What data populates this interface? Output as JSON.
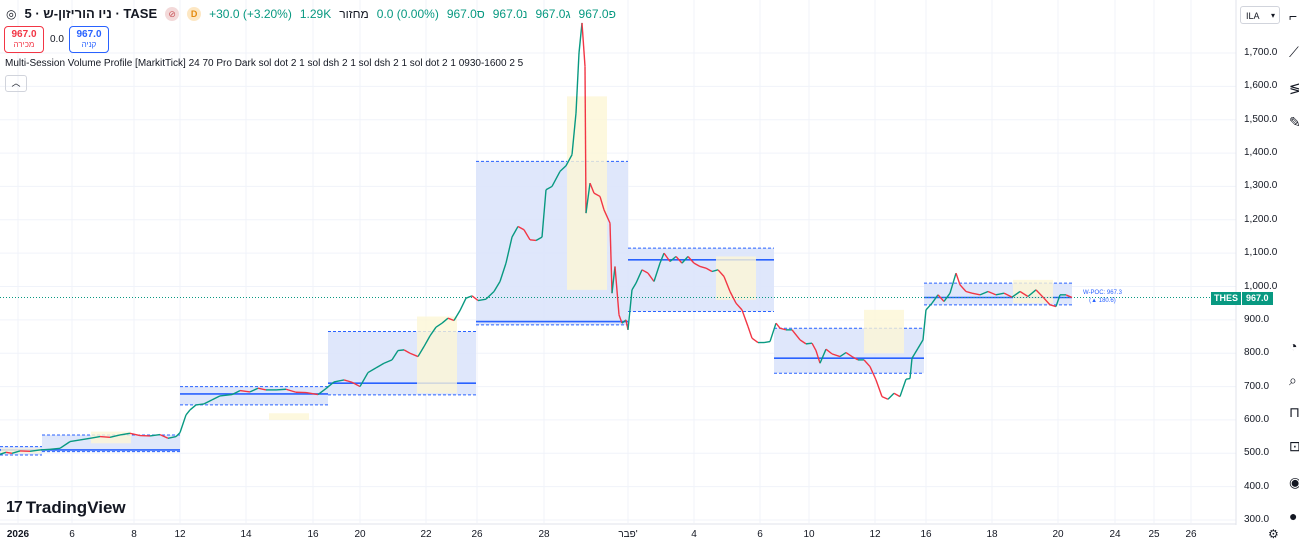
{
  "header": {
    "symbol_title": "ניו הוריזון-ש · 5 · TASE",
    "open": "פ967.0",
    "high": "ג967.0",
    "low": "נ967.0",
    "close": "ס967.0",
    "change": "0.0 (0.00%)",
    "volume_label": "מחזור",
    "volume": "1.29K",
    "day_change": "+30.0 (+3.20%)",
    "badge_d": "D"
  },
  "trade": {
    "sell_value": "967.0",
    "sell_label": "מכירה",
    "spread": "0.0",
    "buy_value": "967.0",
    "buy_label": "קניה"
  },
  "indicator": {
    "label": "Multi-Session Volume Profile [MarkitTick] 24 70 Pro Dark sol dot 2 1 sol dsh 2 1 sol dsh 2 1 sol dot 2 1 0930-1600 2 5"
  },
  "currency": "ILA",
  "logo": "TradingView",
  "last_price": {
    "symbol": "THES",
    "value": "967.0"
  },
  "wpoc": {
    "label": "W-POC: 967.3",
    "delta": "(▲ 180.6)"
  },
  "colors": {
    "up": "#089981",
    "down": "#f23645",
    "accent": "#2962ff",
    "profile_fill": "#dbe4fb",
    "value_area": "#fdf6d6"
  },
  "chart_data": {
    "type": "candlestick-line",
    "title": "ניו הוריזון-ש · 5 · TASE",
    "xlabel": "",
    "ylabel": "",
    "ylim": [
      280,
      1840
    ],
    "y_ticks": [
      "1,700.0",
      "1,600.0",
      "1,500.0",
      "1,400.0",
      "1,300.0",
      "1,200.0",
      "1,100.0",
      "1,000.0",
      "900.0",
      "800.0",
      "700.0",
      "600.0",
      "500.0",
      "400.0",
      "300.0"
    ],
    "x_ticks": [
      "2026",
      "6",
      "8",
      "12",
      "14",
      "16",
      "20",
      "22",
      "26",
      "28",
      "פבר'",
      "4",
      "6",
      "10",
      "12",
      "16",
      "18",
      "20",
      "24",
      "25",
      "26"
    ],
    "price_path": [
      [
        0,
        497
      ],
      [
        6,
        503
      ],
      [
        12,
        500
      ],
      [
        20,
        507
      ],
      [
        30,
        506
      ],
      [
        40,
        510
      ],
      [
        50,
        512
      ],
      [
        60,
        515
      ],
      [
        70,
        535
      ],
      [
        80,
        540
      ],
      [
        90,
        545
      ],
      [
        100,
        550
      ],
      [
        110,
        548
      ],
      [
        120,
        555
      ],
      [
        130,
        560
      ],
      [
        140,
        553
      ],
      [
        150,
        552
      ],
      [
        160,
        556
      ],
      [
        168,
        545
      ],
      [
        176,
        550
      ],
      [
        180,
        562
      ],
      [
        186,
        615
      ],
      [
        190,
        630
      ],
      [
        196,
        645
      ],
      [
        204,
        648
      ],
      [
        212,
        660
      ],
      [
        220,
        672
      ],
      [
        232,
        676
      ],
      [
        240,
        688
      ],
      [
        250,
        684
      ],
      [
        258,
        695
      ],
      [
        266,
        690
      ],
      [
        276,
        690
      ],
      [
        286,
        692
      ],
      [
        296,
        683
      ],
      [
        306,
        682
      ],
      [
        318,
        676
      ],
      [
        326,
        694
      ],
      [
        334,
        714
      ],
      [
        344,
        720
      ],
      [
        352,
        713
      ],
      [
        360,
        700
      ],
      [
        368,
        742
      ],
      [
        376,
        756
      ],
      [
        384,
        770
      ],
      [
        392,
        780
      ],
      [
        398,
        808
      ],
      [
        404,
        810
      ],
      [
        410,
        800
      ],
      [
        418,
        790
      ],
      [
        424,
        820
      ],
      [
        430,
        852
      ],
      [
        436,
        878
      ],
      [
        442,
        890
      ],
      [
        448,
        905
      ],
      [
        454,
        898
      ],
      [
        460,
        928
      ],
      [
        466,
        965
      ],
      [
        472,
        972
      ],
      [
        478,
        958
      ],
      [
        486,
        962
      ],
      [
        494,
        985
      ],
      [
        500,
        1015
      ],
      [
        506,
        1070
      ],
      [
        512,
        1148
      ],
      [
        518,
        1180
      ],
      [
        524,
        1170
      ],
      [
        530,
        1140
      ],
      [
        536,
        1138
      ],
      [
        542,
        1148
      ],
      [
        546,
        1290
      ],
      [
        552,
        1300
      ],
      [
        560,
        1345
      ],
      [
        566,
        1362
      ],
      [
        572,
        1395
      ],
      [
        576,
        1520
      ],
      [
        579,
        1700
      ],
      [
        582,
        1790
      ],
      [
        585,
        1660
      ],
      [
        586,
        1220
      ],
      [
        590,
        1310
      ],
      [
        594,
        1280
      ],
      [
        600,
        1270
      ],
      [
        604,
        1230
      ],
      [
        610,
        1190
      ],
      [
        612,
        980
      ],
      [
        615,
        1060
      ],
      [
        619,
        915
      ],
      [
        622,
        890
      ],
      [
        626,
        900
      ],
      [
        628,
        870
      ],
      [
        632,
        990
      ],
      [
        636,
        1010
      ],
      [
        642,
        1050
      ],
      [
        648,
        1040
      ],
      [
        654,
        1015
      ],
      [
        660,
        1070
      ],
      [
        664,
        1100
      ],
      [
        670,
        1075
      ],
      [
        676,
        1090
      ],
      [
        682,
        1070
      ],
      [
        688,
        1090
      ],
      [
        694,
        1070
      ],
      [
        700,
        1060
      ],
      [
        706,
        1055
      ],
      [
        712,
        1045
      ],
      [
        718,
        1050
      ],
      [
        724,
        1030
      ],
      [
        730,
        985
      ],
      [
        736,
        950
      ],
      [
        742,
        930
      ],
      [
        748,
        880
      ],
      [
        752,
        845
      ],
      [
        758,
        832
      ],
      [
        764,
        832
      ],
      [
        770,
        835
      ],
      [
        776,
        890
      ],
      [
        780,
        875
      ],
      [
        786,
        870
      ],
      [
        792,
        870
      ],
      [
        800,
        840
      ],
      [
        806,
        828
      ],
      [
        812,
        830
      ],
      [
        816,
        808
      ],
      [
        820,
        770
      ],
      [
        826,
        812
      ],
      [
        832,
        798
      ],
      [
        840,
        790
      ],
      [
        846,
        802
      ],
      [
        852,
        790
      ],
      [
        858,
        780
      ],
      [
        864,
        780
      ],
      [
        870,
        760
      ],
      [
        876,
        720
      ],
      [
        882,
        670
      ],
      [
        888,
        662
      ],
      [
        894,
        680
      ],
      [
        900,
        670
      ],
      [
        906,
        722
      ],
      [
        910,
        724
      ],
      [
        912,
        785
      ],
      [
        918,
        815
      ],
      [
        923,
        840
      ],
      [
        926,
        930
      ],
      [
        932,
        950
      ],
      [
        938,
        975
      ],
      [
        944,
        955
      ],
      [
        950,
        980
      ],
      [
        956,
        1040
      ],
      [
        960,
        1005
      ],
      [
        966,
        985
      ],
      [
        972,
        980
      ],
      [
        980,
        975
      ],
      [
        988,
        985
      ],
      [
        996,
        975
      ],
      [
        1004,
        980
      ],
      [
        1012,
        968
      ],
      [
        1020,
        985
      ],
      [
        1028,
        970
      ],
      [
        1036,
        990
      ],
      [
        1044,
        965
      ],
      [
        1050,
        945
      ],
      [
        1056,
        940
      ],
      [
        1060,
        975
      ],
      [
        1066,
        975
      ],
      [
        1072,
        967
      ]
    ],
    "volume_profiles": [
      {
        "x1": 0,
        "x2": 42,
        "top": 520,
        "bottom": 495,
        "poc": 510,
        "va_top": 515,
        "va_bottom": 500
      },
      {
        "x1": 42,
        "x2": 180,
        "top": 555,
        "bottom": 505,
        "poc": 510,
        "va_top": 565,
        "va_bottom": 530
      },
      {
        "x1": 180,
        "x2": 328,
        "top": 700,
        "bottom": 645,
        "poc": 678,
        "va_top": 620,
        "va_bottom": 600
      },
      {
        "x1": 328,
        "x2": 476,
        "top": 865,
        "bottom": 675,
        "poc": 710,
        "va_top": 910,
        "va_bottom": 680
      },
      {
        "x1": 476,
        "x2": 628,
        "top": 1375,
        "bottom": 885,
        "poc": 895,
        "va_top": 1570,
        "va_bottom": 990
      },
      {
        "x1": 628,
        "x2": 774,
        "top": 1115,
        "bottom": 925,
        "poc": 1080,
        "va_top": 1090,
        "va_bottom": 960
      },
      {
        "x1": 774,
        "x2": 924,
        "top": 875,
        "bottom": 740,
        "poc": 785,
        "va_top": 930,
        "va_bottom": 800
      },
      {
        "x1": 924,
        "x2": 1072,
        "top": 1010,
        "bottom": 945,
        "poc": 967,
        "va_top": 1020,
        "va_bottom": 950
      }
    ]
  }
}
